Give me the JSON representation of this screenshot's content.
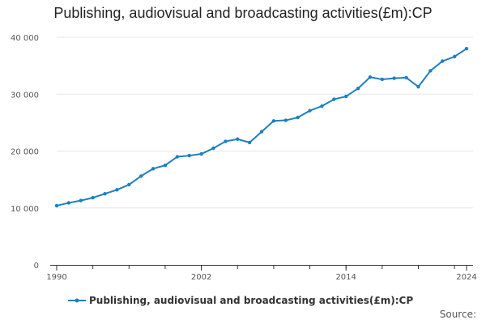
{
  "chart_data": {
    "type": "line",
    "title": "Publishing, audiovisual and broadcasting activities(£m):CP",
    "xlabel": "",
    "ylabel": "",
    "x": [
      1990,
      1991,
      1992,
      1993,
      1994,
      1995,
      1996,
      1997,
      1998,
      1999,
      2000,
      2001,
      2002,
      2003,
      2004,
      2005,
      2006,
      2007,
      2008,
      2009,
      2010,
      2011,
      2012,
      2013,
      2014,
      2015,
      2016,
      2017,
      2018,
      2019,
      2020,
      2021,
      2022,
      2023,
      2024
    ],
    "series": [
      {
        "name": "Publishing, audiovisual and broadcasting activities(£m):CP",
        "color": "#1f7fbf",
        "values": [
          10400,
          10900,
          11300,
          11800,
          12500,
          13200,
          14100,
          15600,
          16900,
          17500,
          19000,
          19200,
          19500,
          20500,
          21700,
          22100,
          21500,
          23400,
          25300,
          25400,
          25900,
          27100,
          27900,
          29100,
          29600,
          31000,
          33000,
          32600,
          32800,
          32900,
          31300,
          34100,
          35800,
          36600,
          38000
        ]
      }
    ],
    "xlim": [
      1990,
      2024
    ],
    "ylim": [
      0,
      40000
    ],
    "x_ticks": [
      1990,
      2002,
      2014,
      2024
    ],
    "x_tick_labels": [
      "1990",
      "2002",
      "2014",
      "2024"
    ],
    "y_ticks": [
      0,
      10000,
      20000,
      30000,
      40000
    ],
    "y_tick_labels": [
      "0",
      "10 000",
      "20 000",
      "30 000",
      "40 000"
    ],
    "legend_position": "bottom",
    "source_label": "Source:",
    "colors": {
      "axis": "#333333",
      "grid": "#e6e6e6",
      "text": "#555555"
    }
  }
}
